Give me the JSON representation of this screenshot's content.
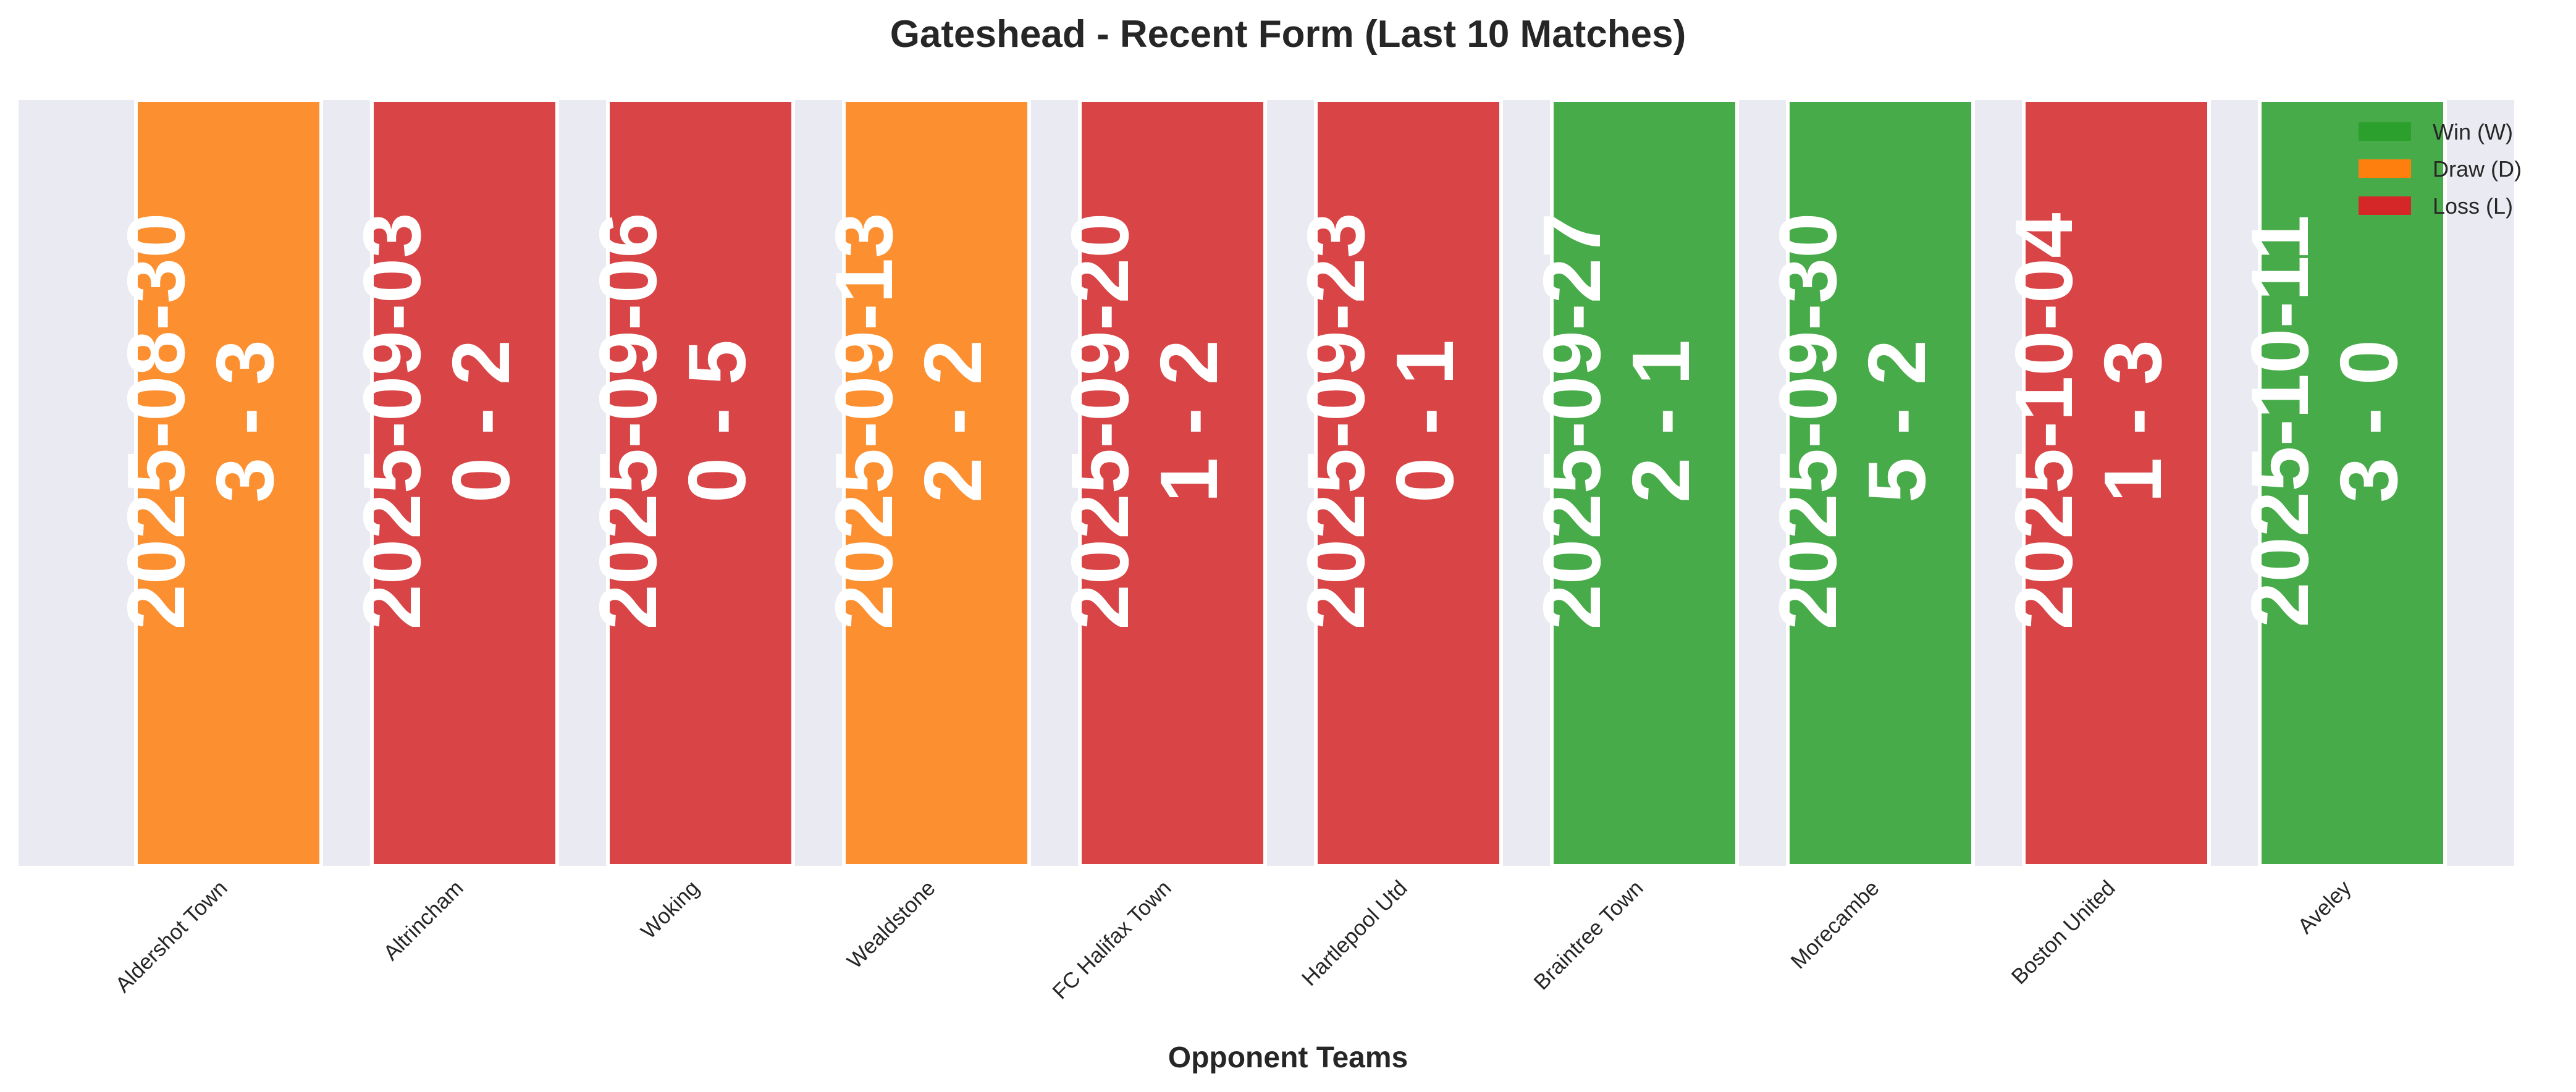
{
  "chart_data": {
    "type": "bar",
    "title": "Gateshead - Recent Form (Last 10 Matches)",
    "xlabel": "Opponent Teams",
    "ylabel": "",
    "ylim": [
      0,
      1
    ],
    "grid": true,
    "categories": [
      "Aldershot Town",
      "Altrincham",
      "Woking",
      "Wealdstone",
      "FC Halifax Town",
      "Hartlepool Utd",
      "Braintree Town",
      "Morecambe",
      "Boston United",
      "Aveley"
    ],
    "values": [
      1,
      1,
      1,
      1,
      1,
      1,
      1,
      1,
      1,
      1
    ],
    "results": [
      "D",
      "L",
      "L",
      "D",
      "L",
      "L",
      "W",
      "W",
      "L",
      "W"
    ],
    "dates": [
      "2025-08-30",
      "2025-09-03",
      "2025-09-06",
      "2025-09-13",
      "2025-09-20",
      "2025-09-23",
      "2025-09-27",
      "2025-09-30",
      "2025-10-04",
      "2025-10-11"
    ],
    "scores": [
      "3 - 3",
      "0 - 2",
      "0 - 5",
      "2 - 2",
      "1 - 2",
      "0 - 1",
      "2 - 1",
      "5 - 2",
      "1 - 3",
      "3 - 0"
    ],
    "legend": {
      "position": "top-right",
      "entries": [
        {
          "key": "W",
          "label": "Win (W)"
        },
        {
          "key": "D",
          "label": "Draw (D)"
        },
        {
          "key": "L",
          "label": "Loss (L)"
        }
      ]
    },
    "colors": {
      "W": "#2ca02c",
      "D": "#ff7f0e",
      "L": "#d62728",
      "plot_background": "#eaeaf2"
    }
  }
}
